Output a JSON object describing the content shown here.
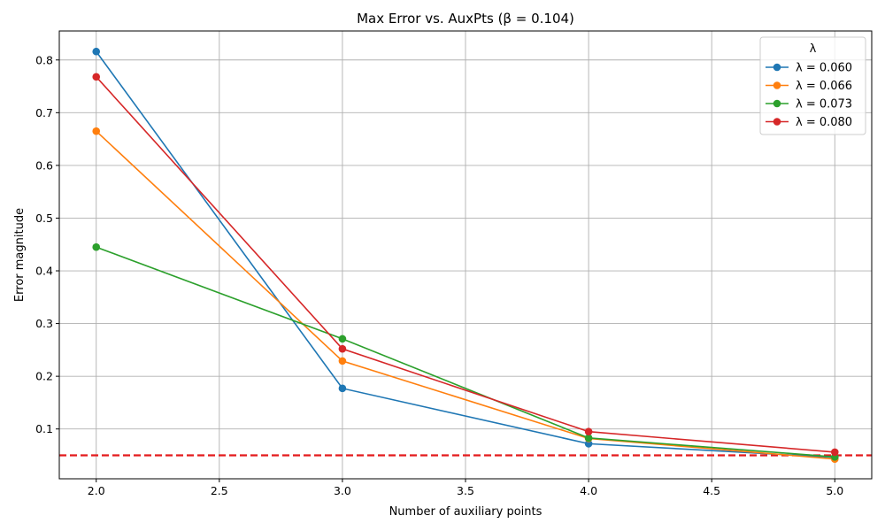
{
  "chart_data": {
    "type": "line",
    "title": "Max Error vs. AuxPts (β = 0.104)",
    "xlabel": "Number of auxiliary points",
    "ylabel": "Error magnitude",
    "xlim": [
      1.85,
      5.15
    ],
    "ylim": [
      0.0055,
      0.855
    ],
    "x_ticks": [
      2.0,
      2.5,
      3.0,
      3.5,
      4.0,
      4.5,
      5.0
    ],
    "x_tick_labels": [
      "2.0",
      "2.5",
      "3.0",
      "3.5",
      "4.0",
      "4.5",
      "5.0"
    ],
    "y_ticks": [
      0.1,
      0.2,
      0.3,
      0.4,
      0.5,
      0.6,
      0.7,
      0.8
    ],
    "y_tick_labels": [
      "0.1",
      "0.2",
      "0.3",
      "0.4",
      "0.5",
      "0.6",
      "0.7",
      "0.8"
    ],
    "grid": true,
    "legend": {
      "title": "λ",
      "placement": "top-right"
    },
    "x": [
      2,
      3,
      4,
      5
    ],
    "series": [
      {
        "name": "λ = 0.060",
        "color": "#1f77b4",
        "values": [
          0.816,
          0.177,
          0.072,
          0.046
        ]
      },
      {
        "name": "λ = 0.066",
        "color": "#ff7f0e",
        "values": [
          0.665,
          0.229,
          0.082,
          0.043
        ]
      },
      {
        "name": "λ = 0.073",
        "color": "#2ca02c",
        "values": [
          0.445,
          0.271,
          0.083,
          0.047
        ]
      },
      {
        "name": "λ = 0.080",
        "color": "#d62728",
        "values": [
          0.768,
          0.252,
          0.095,
          0.056
        ]
      }
    ],
    "reference_line": {
      "y": 0.05,
      "color": "#e31a1c",
      "style": "dashed"
    }
  }
}
